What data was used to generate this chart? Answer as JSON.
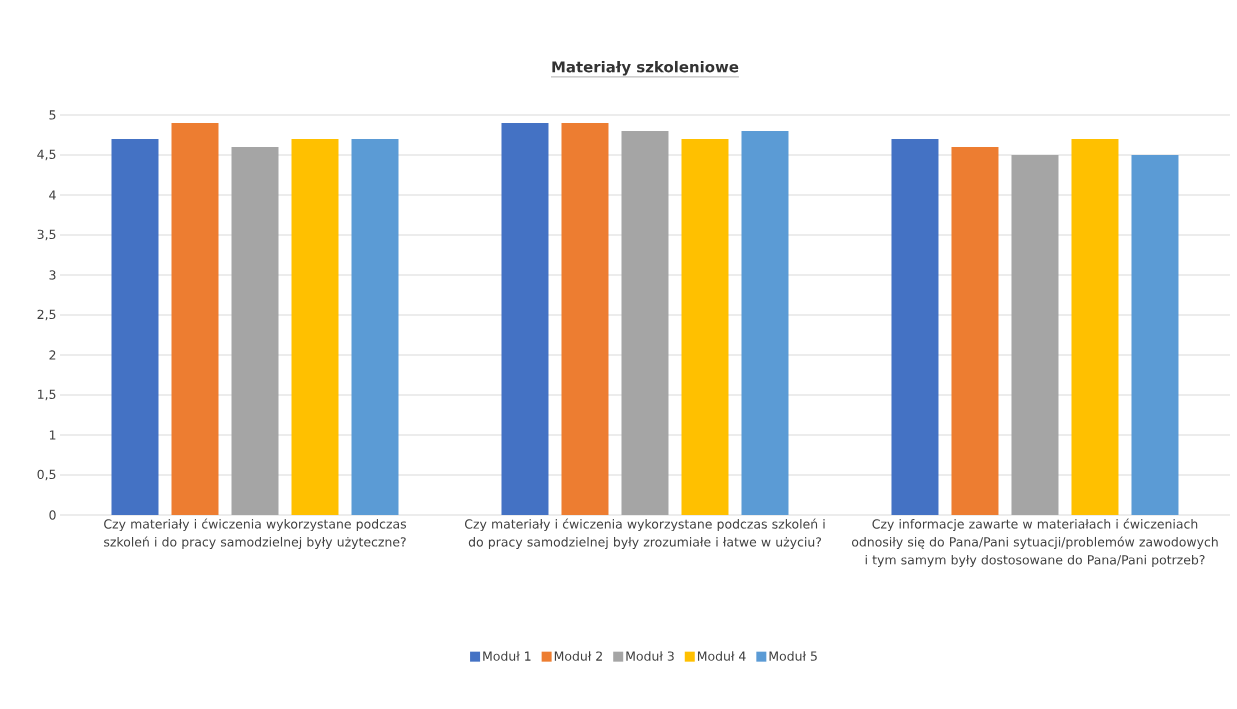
{
  "chart_data": {
    "type": "bar",
    "title": "Materiały szkoleniowe",
    "categories": [
      "Czy materiały i ćwiczenia wykorzystane podczas szkoleń i do pracy samodzielnej były użyteczne?",
      "Czy materiały i ćwiczenia wykorzystane podczas szkoleń i do pracy samodzielnej były zrozumiałe i łatwe w użyciu?",
      "Czy informacje zawarte w materiałach  i ćwiczeniach odnosiły się do Pana/Pani sytuacji/problemów zawodowych i tym samym były dostosowane do Pana/Pani potrzeb?"
    ],
    "series": [
      {
        "name": "Moduł 1",
        "color": "#4472c4",
        "values": [
          4.7,
          4.9,
          4.7
        ]
      },
      {
        "name": "Moduł 2",
        "color": "#ed7d31",
        "values": [
          4.9,
          4.9,
          4.6
        ]
      },
      {
        "name": "Moduł 3",
        "color": "#a5a5a5",
        "values": [
          4.6,
          4.8,
          4.5
        ]
      },
      {
        "name": "Moduł 4",
        "color": "#ffc000",
        "values": [
          4.7,
          4.7,
          4.7
        ]
      },
      {
        "name": "Moduł 5",
        "color": "#5b9bd5",
        "values": [
          4.7,
          4.8,
          4.5
        ]
      }
    ],
    "ylim": [
      0,
      5
    ],
    "yticks": [
      0,
      {
        "value": 0.5,
        "label": "0,5"
      },
      1,
      {
        "value": 1.5,
        "label": "1,5"
      },
      2,
      {
        "value": 2.5,
        "label": "2,5"
      },
      3,
      {
        "value": 3.5,
        "label": "3,5"
      },
      4,
      {
        "value": 4.5,
        "label": "4,5"
      },
      5
    ],
    "grid": "y",
    "legend": "bottom"
  }
}
